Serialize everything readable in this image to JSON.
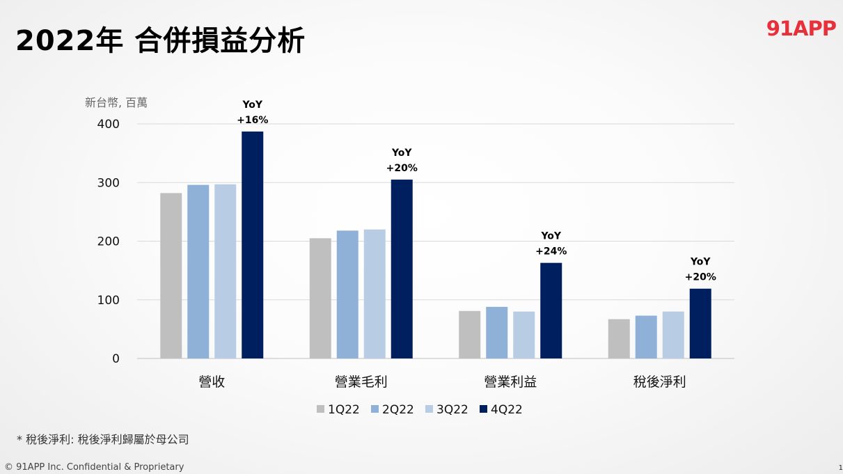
{
  "page": {
    "title": "2022年 合併損益分析",
    "logo": "91APP",
    "footnote": "* 稅後淨利: 稅後淨利歸屬於母公司",
    "copyright": "© 91APP Inc. Confidential & Proprietary",
    "page_number": "1"
  },
  "chart_data": {
    "type": "bar",
    "unit_label": "新台幣, 百萬",
    "categories": [
      "營收",
      "營業毛利",
      "營業利益",
      "稅後淨利"
    ],
    "series": [
      {
        "name": "1Q22",
        "color": "#bfbfbf",
        "values": [
          282,
          205,
          81,
          67
        ]
      },
      {
        "name": "2Q22",
        "color": "#8fb1d8",
        "values": [
          296,
          218,
          88,
          73
        ]
      },
      {
        "name": "3Q22",
        "color": "#b8cde4",
        "values": [
          297,
          220,
          80,
          80
        ]
      },
      {
        "name": "4Q22",
        "color": "#001f5f",
        "values": [
          387,
          305,
          163,
          119
        ]
      }
    ],
    "annotations": [
      {
        "category": "營收",
        "line1": "YoY",
        "line2": "+16%"
      },
      {
        "category": "營業毛利",
        "line1": "YoY",
        "line2": "+20%"
      },
      {
        "category": "營業利益",
        "line1": "YoY",
        "line2": "+24%"
      },
      {
        "category": "稅後淨利",
        "line1": "YoY",
        "line2": "+20%"
      }
    ],
    "yticks": [
      0,
      100,
      200,
      300,
      400
    ],
    "ylim": [
      0,
      400
    ],
    "grid": true,
    "legend_position": "bottom"
  }
}
